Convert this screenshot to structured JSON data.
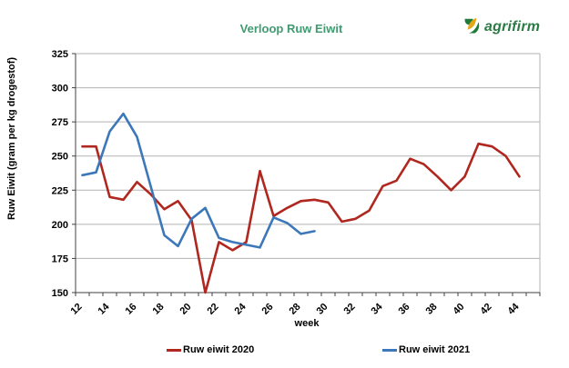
{
  "logo": {
    "text": "agrifirm"
  },
  "chart_data": {
    "type": "line",
    "title": "Verloop Ruw Eiwit",
    "xlabel": "week",
    "ylabel": "Ruw Eiwit (gram per kg drogestof)",
    "ylim": [
      150,
      325
    ],
    "yticks": [
      150,
      175,
      200,
      225,
      250,
      275,
      300,
      325
    ],
    "grid": true,
    "legend_position": "bottom",
    "x_axis": {
      "first_week": 12,
      "last_week": 45,
      "label_weeks": [
        12,
        14,
        16,
        18,
        20,
        22,
        24,
        26,
        28,
        30,
        32,
        34,
        36,
        38,
        40,
        42,
        44
      ]
    },
    "series": [
      {
        "name": "Ruw eiwit 2020",
        "color": "#b0271f",
        "x_start": 12,
        "x": [
          12,
          13,
          14,
          15,
          16,
          17,
          18,
          19,
          20,
          21,
          22,
          23,
          24,
          25,
          26,
          27,
          28,
          29,
          30,
          31,
          32,
          33,
          34,
          35,
          36,
          37,
          38,
          39,
          40,
          41,
          42,
          43,
          44
        ],
        "values": [
          257,
          257,
          220,
          218,
          231,
          222,
          211,
          217,
          203,
          150,
          187,
          181,
          187,
          239,
          206,
          212,
          217,
          218,
          216,
          202,
          204,
          210,
          228,
          232,
          248,
          244,
          235,
          225,
          235,
          259,
          257,
          250,
          235
        ]
      },
      {
        "name": "Ruw eiwit 2021",
        "color": "#3c78b9",
        "x_start": 12,
        "x": [
          12,
          13,
          14,
          15,
          16,
          17,
          18,
          19,
          20,
          21,
          22,
          23,
          24,
          25,
          26,
          27,
          28,
          29
        ],
        "values": [
          236,
          238,
          268,
          281,
          264,
          228,
          192,
          184,
          204,
          212,
          190,
          187,
          185,
          183,
          205,
          201,
          193,
          195
        ]
      }
    ]
  },
  "colors": {
    "title_green": "#3f9b71",
    "logo_green": "#2c7b45",
    "logo_gold": "#e7a614",
    "grid": "#b3b3b3",
    "axis": "#404040"
  }
}
